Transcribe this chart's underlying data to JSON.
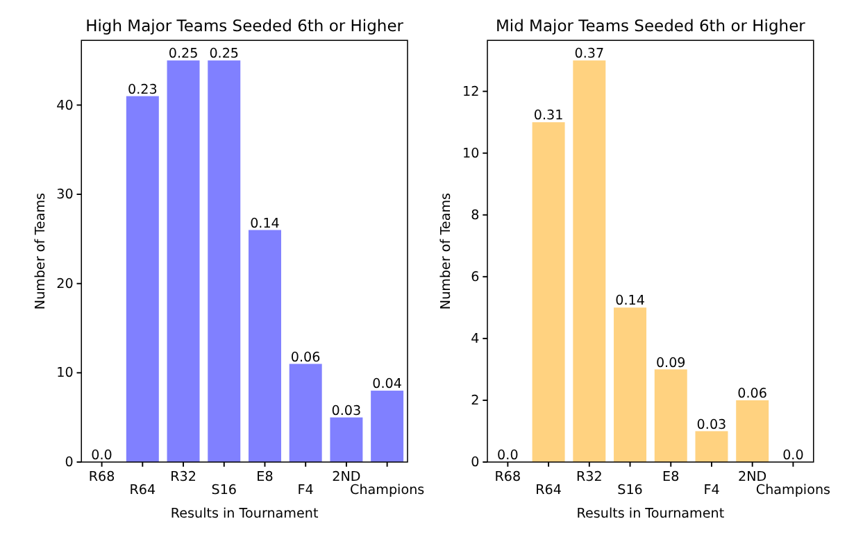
{
  "chart_data": [
    {
      "type": "bar",
      "title": "High Major Teams Seeded 6th or Higher",
      "xlabel": "Results in Tournament",
      "ylabel": "Number of Teams",
      "categories": [
        "R68",
        "R64",
        "R32",
        "S16",
        "E8",
        "F4",
        "2ND",
        "Champions"
      ],
      "values": [
        0,
        41,
        45,
        45,
        26,
        11,
        5,
        8
      ],
      "color": "#8080ff",
      "ylim": [
        0,
        47.25
      ],
      "yticks": [
        0,
        10,
        20,
        30,
        40
      ],
      "annotations": [
        {
          "text": "0.0",
          "x": "R68",
          "y": 0
        },
        {
          "text": "0.23",
          "x": "R64",
          "y": 41
        },
        {
          "text": "0.25",
          "x": "R32",
          "y": 45
        },
        {
          "text": "0.25",
          "x": "S16",
          "y": 45
        },
        {
          "text": "0.14",
          "x": "E8",
          "y": 26
        },
        {
          "text": "0.06",
          "x": "F4",
          "y": 11
        },
        {
          "text": "0.03",
          "x": "2ND",
          "y": 5
        },
        {
          "text": "0.04",
          "x": "Champions",
          "y": 8
        }
      ]
    },
    {
      "type": "bar",
      "title": "Mid Major Teams Seeded 6th or Higher",
      "xlabel": "Results in Tournament",
      "ylabel": "Number of Teams",
      "categories": [
        "R68",
        "R64",
        "R32",
        "S16",
        "E8",
        "F4",
        "2ND",
        "Champions"
      ],
      "values": [
        0,
        11,
        13,
        5,
        3,
        1,
        2,
        0
      ],
      "color": "#ffd280",
      "ylim": [
        0,
        13.65
      ],
      "yticks": [
        0,
        2,
        4,
        6,
        8,
        10,
        12
      ],
      "annotations": [
        {
          "text": "0.0",
          "x": "R68",
          "y": 0
        },
        {
          "text": "0.31",
          "x": "R64",
          "y": 11
        },
        {
          "text": "0.37",
          "x": "R32",
          "y": 13
        },
        {
          "text": "0.14",
          "x": "S16",
          "y": 5
        },
        {
          "text": "0.09",
          "x": "E8",
          "y": 3
        },
        {
          "text": "0.03",
          "x": "F4",
          "y": 1
        },
        {
          "text": "0.06",
          "x": "2ND",
          "y": 2
        },
        {
          "text": "0.0",
          "x": "Champions",
          "y": 0
        }
      ]
    }
  ]
}
